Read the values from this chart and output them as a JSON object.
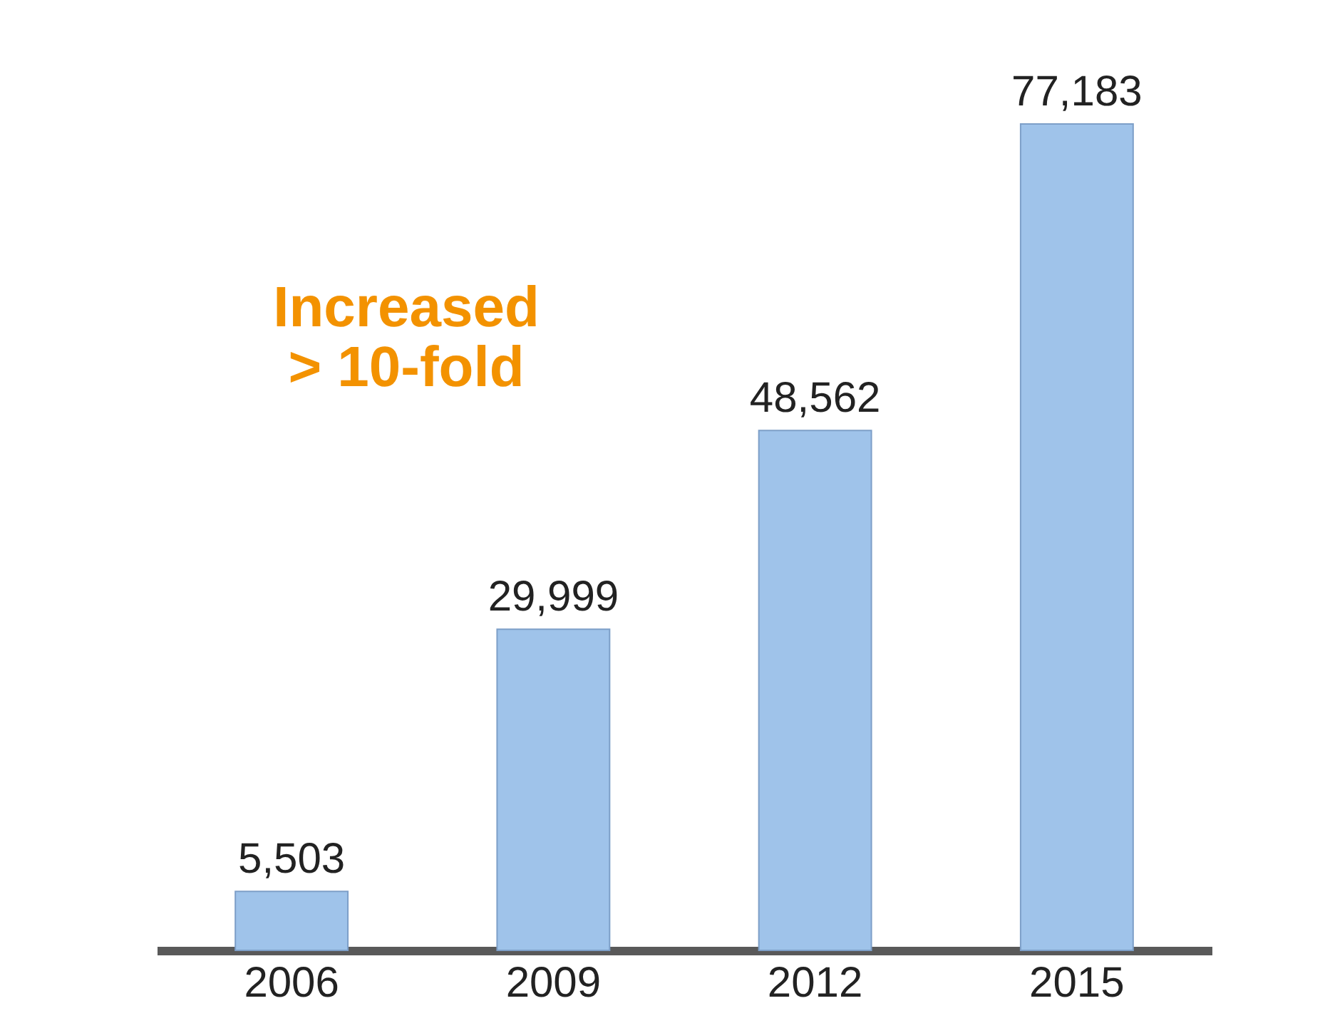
{
  "chart_data": {
    "type": "bar",
    "categories": [
      "2006",
      "2009",
      "2012",
      "2015"
    ],
    "values": [
      5503,
      29999,
      48562,
      77183
    ],
    "color": "#9fc3ea",
    "value_labels": [
      "5,503",
      "29,999",
      "48,562",
      "77,183"
    ],
    "grid": false,
    "tick_labels": "x",
    "annotations": [
      "Increased\n> 10-fold"
    ]
  }
}
